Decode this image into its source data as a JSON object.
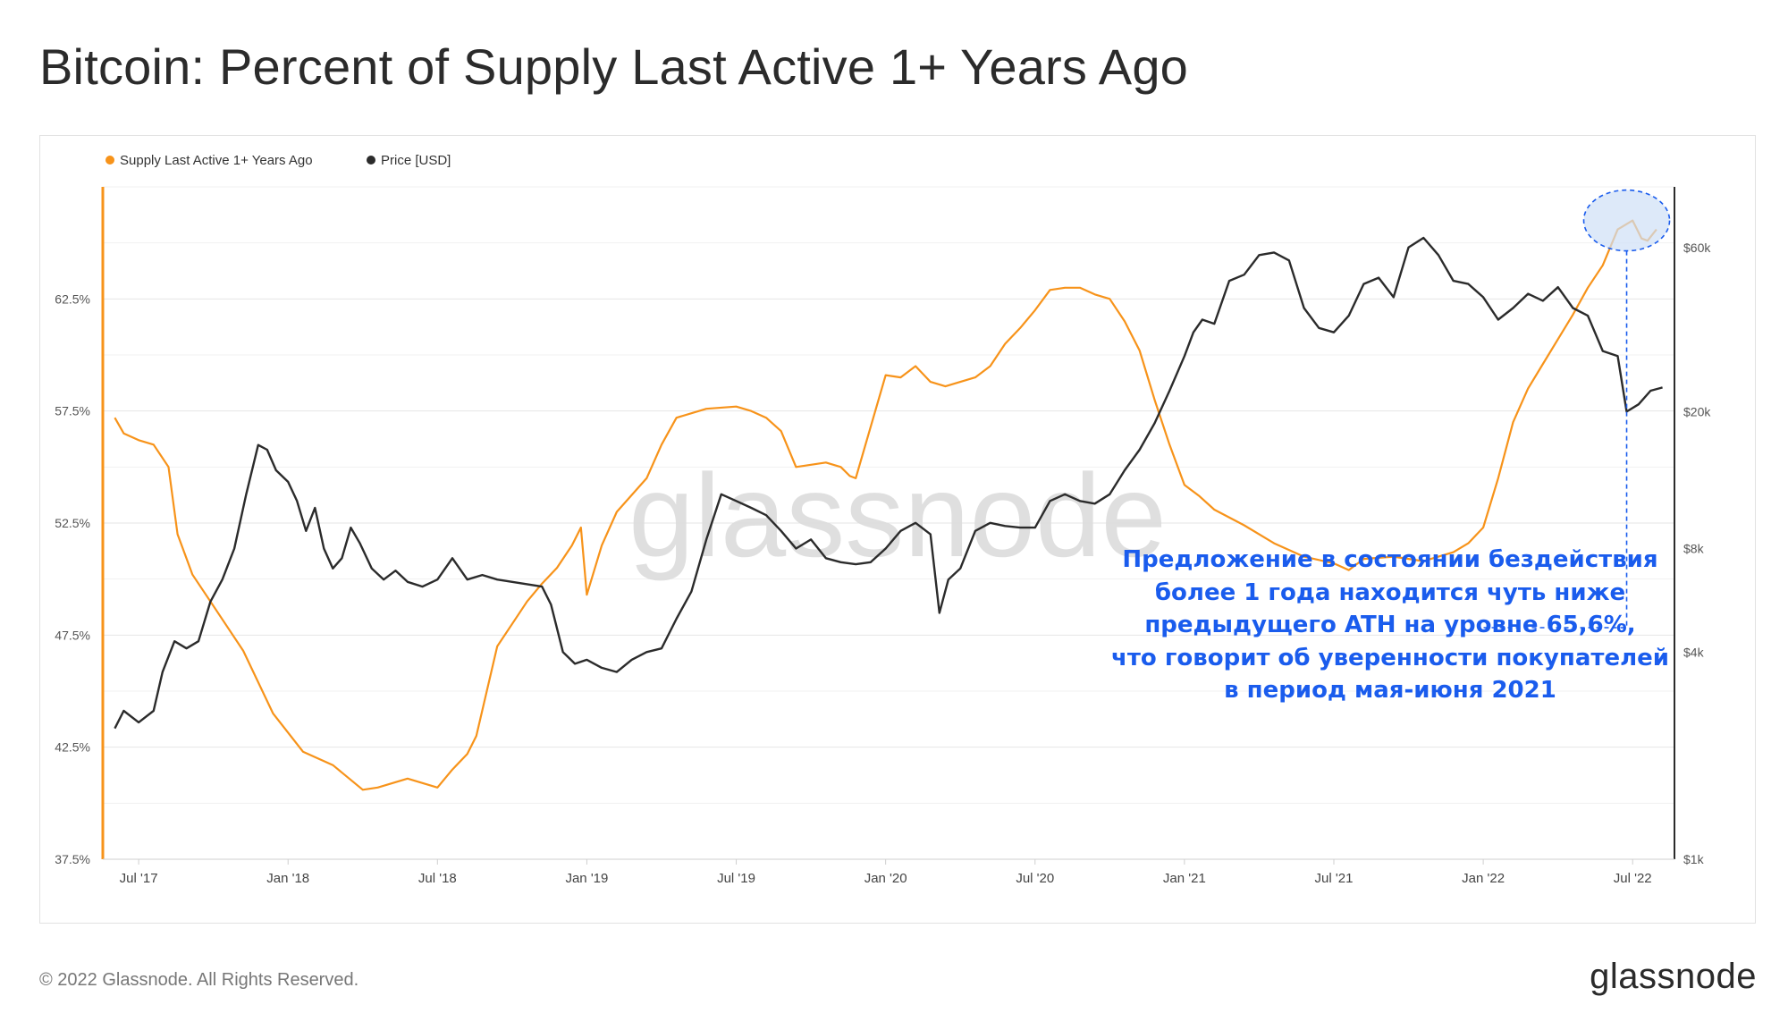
{
  "page": {
    "title": "Bitcoin: Percent of Supply Last Active 1+ Years Ago",
    "copyright": "© 2022 Glassnode. All Rights Reserved.",
    "brand": "glassnode",
    "watermark": "glassnode",
    "annotation_lines": [
      "Предложение в состоянии бездействия",
      "более 1 года находится чуть ниже",
      "предыдущего ATH на уровне 65,6%,",
      "что говорит об уверенности покупателей",
      "в период мая-июня 2021"
    ],
    "colors": {
      "supply": "#f7931a",
      "price": "#2b2b2b",
      "annotation": "#1a5ced",
      "highlight": "#cfe0f7"
    }
  },
  "chart_data": {
    "type": "line",
    "title": "Bitcoin: Percent of Supply Last Active 1+ Years Ago",
    "legend_position": "top-left",
    "x_ticks": [
      "Jul '17",
      "Jan '18",
      "Jul '18",
      "Jan '19",
      "Jul '19",
      "Jan '20",
      "Jul '20",
      "Jan '21",
      "Jul '21",
      "Jan '22",
      "Jul '22"
    ],
    "x_tick_values": [
      2017.5,
      2018.0,
      2018.5,
      2019.0,
      2019.5,
      2020.0,
      2020.5,
      2021.0,
      2021.5,
      2022.0,
      2022.5
    ],
    "xlim": [
      2017.38,
      2022.64
    ],
    "y_left": {
      "label": "Supply Last Active 1+ Years Ago",
      "ticks": [
        "37.5%",
        "42.5%",
        "47.5%",
        "52.5%",
        "57.5%",
        "62.5%"
      ],
      "tick_values": [
        37.5,
        42.5,
        47.5,
        52.5,
        57.5,
        62.5
      ],
      "ylim": [
        37.5,
        67.5
      ]
    },
    "y_right": {
      "label": "Price [USD]",
      "scale": "log",
      "ticks": [
        "$1k",
        "$4k",
        "$8k",
        "$20k",
        "$60k"
      ],
      "tick_values": [
        1000,
        4000,
        8000,
        20000,
        60000
      ],
      "ylim": [
        1000,
        90000
      ]
    },
    "series": [
      {
        "name": "Supply Last Active 1+ Years Ago",
        "axis": "left",
        "color": "#f7931a",
        "x": [
          2017.42,
          2017.45,
          2017.5,
          2017.55,
          2017.6,
          2017.63,
          2017.68,
          2017.75,
          2017.85,
          2017.95,
          2018.05,
          2018.15,
          2018.25,
          2018.3,
          2018.4,
          2018.5,
          2018.55,
          2018.6,
          2018.63,
          2018.7,
          2018.75,
          2018.8,
          2018.85,
          2018.9,
          2018.95,
          2018.98,
          2019.0,
          2019.05,
          2019.1,
          2019.2,
          2019.25,
          2019.3,
          2019.4,
          2019.5,
          2019.55,
          2019.6,
          2019.65,
          2019.7,
          2019.8,
          2019.85,
          2019.88,
          2019.9,
          2020.0,
          2020.05,
          2020.1,
          2020.15,
          2020.2,
          2020.3,
          2020.35,
          2020.4,
          2020.45,
          2020.5,
          2020.55,
          2020.6,
          2020.65,
          2020.7,
          2020.75,
          2020.8,
          2020.85,
          2020.9,
          2020.95,
          2021.0,
          2021.05,
          2021.1,
          2021.2,
          2021.3,
          2021.4,
          2021.5,
          2021.55,
          2021.6,
          2021.7,
          2021.8,
          2021.9,
          2021.95,
          2022.0,
          2022.05,
          2022.1,
          2022.15,
          2022.2,
          2022.3,
          2022.35,
          2022.4,
          2022.45,
          2022.5,
          2022.53,
          2022.55,
          2022.58
        ],
        "values": [
          57.2,
          56.5,
          56.2,
          56.0,
          55.0,
          52.0,
          50.2,
          48.8,
          46.8,
          44.0,
          42.3,
          41.7,
          40.6,
          40.7,
          41.1,
          40.7,
          41.5,
          42.2,
          43.0,
          47.0,
          48.0,
          49.0,
          49.8,
          50.5,
          51.5,
          52.3,
          49.3,
          51.5,
          53.0,
          54.5,
          56.0,
          57.2,
          57.6,
          57.7,
          57.5,
          57.2,
          56.6,
          55.0,
          55.2,
          55.0,
          54.6,
          54.5,
          59.1,
          59.0,
          59.5,
          58.8,
          58.6,
          59.0,
          59.5,
          60.5,
          61.2,
          62.0,
          62.9,
          63.0,
          63.0,
          62.7,
          62.5,
          61.5,
          60.2,
          58.0,
          56.0,
          54.2,
          53.7,
          53.1,
          52.4,
          51.6,
          51.0,
          50.7,
          50.4,
          50.9,
          51.0,
          50.8,
          51.2,
          51.6,
          52.3,
          54.5,
          57.0,
          58.5,
          59.6,
          61.8,
          63.0,
          64.0,
          65.6,
          66.0,
          65.2,
          65.1,
          65.6
        ]
      },
      {
        "name": "Price [USD]",
        "axis": "right",
        "color": "#2b2b2b",
        "x": [
          2017.42,
          2017.45,
          2017.5,
          2017.55,
          2017.58,
          2017.62,
          2017.66,
          2017.7,
          2017.74,
          2017.78,
          2017.82,
          2017.86,
          2017.9,
          2017.93,
          2017.96,
          2018.0,
          2018.03,
          2018.06,
          2018.09,
          2018.12,
          2018.15,
          2018.18,
          2018.21,
          2018.24,
          2018.28,
          2018.32,
          2018.36,
          2018.4,
          2018.45,
          2018.5,
          2018.55,
          2018.6,
          2018.65,
          2018.7,
          2018.75,
          2018.8,
          2018.85,
          2018.88,
          2018.92,
          2018.96,
          2019.0,
          2019.05,
          2019.1,
          2019.15,
          2019.2,
          2019.25,
          2019.3,
          2019.35,
          2019.4,
          2019.45,
          2019.5,
          2019.55,
          2019.6,
          2019.65,
          2019.7,
          2019.75,
          2019.8,
          2019.85,
          2019.9,
          2019.95,
          2020.0,
          2020.05,
          2020.1,
          2020.15,
          2020.18,
          2020.21,
          2020.25,
          2020.3,
          2020.35,
          2020.4,
          2020.45,
          2020.5,
          2020.55,
          2020.6,
          2020.65,
          2020.7,
          2020.75,
          2020.8,
          2020.85,
          2020.9,
          2020.95,
          2021.0,
          2021.03,
          2021.06,
          2021.1,
          2021.15,
          2021.2,
          2021.25,
          2021.3,
          2021.35,
          2021.4,
          2021.45,
          2021.5,
          2021.55,
          2021.6,
          2021.65,
          2021.7,
          2021.75,
          2021.8,
          2021.85,
          2021.9,
          2021.95,
          2022.0,
          2022.05,
          2022.1,
          2022.15,
          2022.2,
          2022.25,
          2022.3,
          2022.35,
          2022.4,
          2022.45,
          2022.48,
          2022.52,
          2022.56,
          2022.6
        ],
        "values": [
          2400,
          2700,
          2500,
          2700,
          3500,
          4300,
          4100,
          4300,
          5600,
          6500,
          8000,
          11500,
          16000,
          15500,
          13500,
          12500,
          11000,
          9000,
          10500,
          8000,
          7000,
          7500,
          9200,
          8300,
          7000,
          6500,
          6900,
          6400,
          6200,
          6500,
          7500,
          6500,
          6700,
          6500,
          6400,
          6300,
          6200,
          5500,
          4000,
          3700,
          3800,
          3600,
          3500,
          3800,
          4000,
          4100,
          5000,
          6000,
          8500,
          11500,
          11000,
          10500,
          10000,
          9000,
          8000,
          8500,
          7500,
          7300,
          7200,
          7300,
          8000,
          9000,
          9500,
          8800,
          5200,
          6500,
          7000,
          9000,
          9500,
          9300,
          9200,
          9200,
          11000,
          11500,
          11000,
          10800,
          11500,
          13500,
          15500,
          18500,
          23000,
          29000,
          34000,
          37000,
          36000,
          48000,
          50000,
          57000,
          58000,
          55000,
          40000,
          35000,
          34000,
          38000,
          47000,
          49000,
          43000,
          60000,
          64000,
          57000,
          48000,
          47000,
          43000,
          37000,
          40000,
          44000,
          42000,
          46000,
          40000,
          38000,
          30000,
          29000,
          20000,
          21000,
          23000,
          23500
        ]
      }
    ]
  }
}
